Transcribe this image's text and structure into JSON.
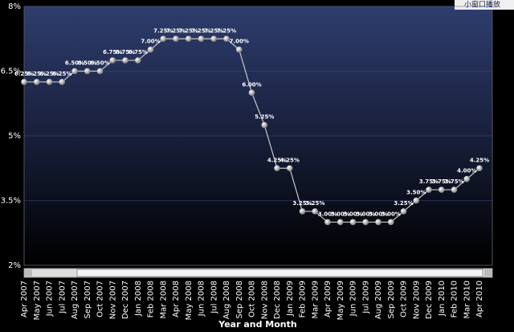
{
  "chart_data": {
    "type": "line",
    "x_label": "Year and Month",
    "overlay_button": "小窗口播放",
    "categories": [
      "Apr 2007",
      "May 2007",
      "Jun 2007",
      "Jul 2007",
      "Aug 2007",
      "Sep 2007",
      "Oct 2007",
      "Nov 2007",
      "Dec 2007",
      "Jan 2008",
      "Feb 2008",
      "Mar 2008",
      "Apr 2008",
      "May 2008",
      "Jun 2008",
      "Jul 2008",
      "Aug 2008",
      "Sep 2008",
      "Oct 2008",
      "Nov 2008",
      "Dec 2008",
      "Jan 2009",
      "Feb 2009",
      "Mar 2009",
      "Apr 2009",
      "May 2009",
      "Jun 2009",
      "Jul 2009",
      "Aug 2009",
      "Sep 2009",
      "Oct 2009",
      "Nov 2009",
      "Dec 2009",
      "Jan 2010",
      "Feb 2010",
      "Mar 2010",
      "Apr 2010"
    ],
    "series": [
      {
        "color": "#c8c8c8",
        "values": [
          6.25,
          6.25,
          6.25,
          6.25,
          6.5,
          6.5,
          6.5,
          6.75,
          6.75,
          6.75,
          7,
          7.25,
          7.25,
          7.25,
          7.25,
          7.25,
          7.25,
          7,
          6,
          5.25,
          4.25,
          4.25,
          3.25,
          3.25,
          3,
          3,
          3,
          3,
          3,
          3,
          3.25,
          3.5,
          3.75,
          3.75,
          3.75,
          4,
          4.25
        ],
        "value_labels": [
          "6.25%",
          "6.25%",
          "6.25%",
          "6.25%",
          "6.50%",
          "6.50%",
          "6.50%",
          "6.75%",
          "6.75%",
          "6.75%",
          "7.00%",
          "7.25%",
          "7.25%",
          "7.25%",
          "7.25%",
          "7.25%",
          "7.25%",
          "7.00%",
          "6.00%",
          "5.25%",
          "4.25%",
          "4.25%",
          "3.25%",
          "3.25%",
          "3.00%",
          "3.00%",
          "3.00%",
          "3.00%",
          "3.00%",
          "3.00%",
          "3.25%",
          "3.50%",
          "3.75%",
          "3.75%",
          "3.75%",
          "4.00%",
          "4.25%"
        ]
      }
    ],
    "ylim": [
      2,
      8
    ],
    "yticks": [
      {
        "value": 2,
        "label": "2%"
      },
      {
        "value": 3.5,
        "label": "3.5%"
      },
      {
        "value": 5,
        "label": "5%"
      },
      {
        "value": 6.5,
        "label": "6.5%"
      },
      {
        "value": 8,
        "label": "8%"
      }
    ],
    "grid": true
  }
}
